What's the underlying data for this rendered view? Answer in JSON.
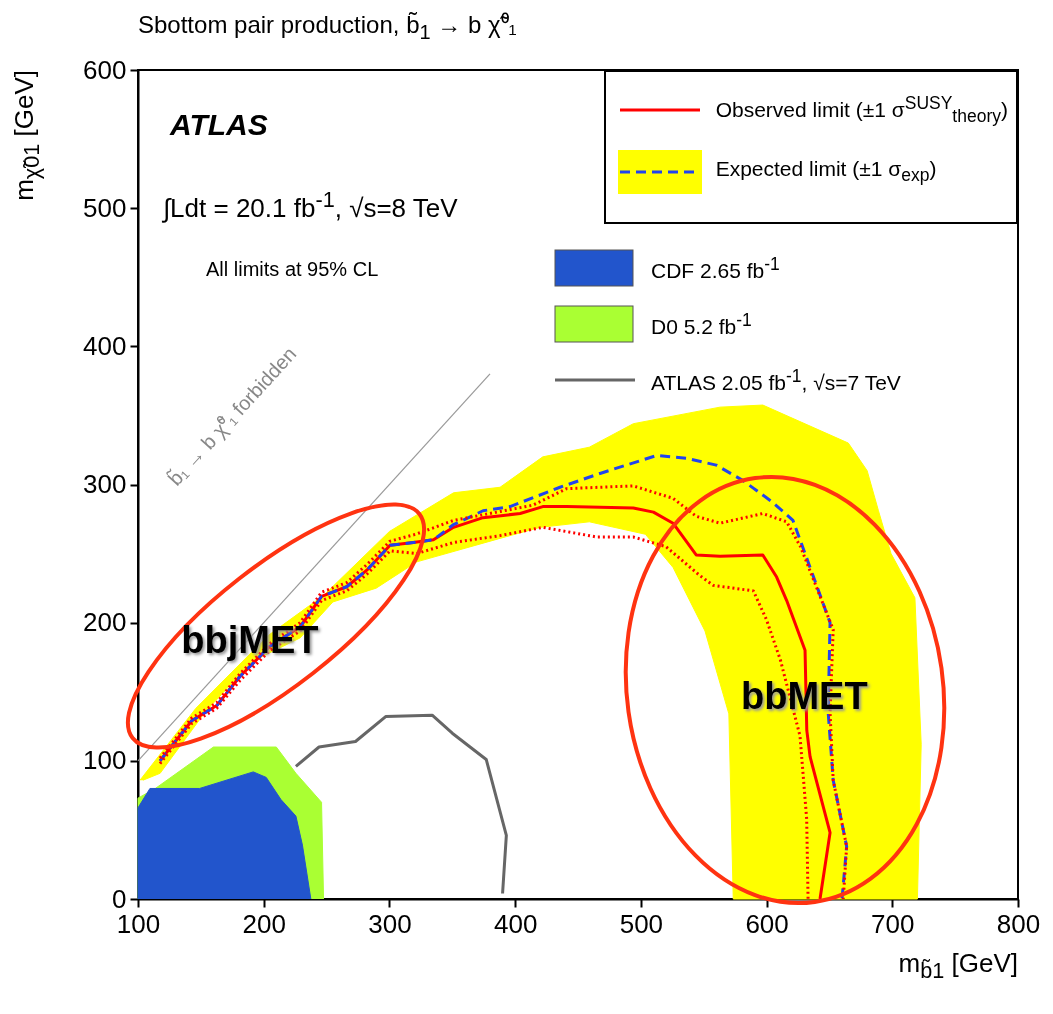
{
  "chart_data": {
    "type": "line",
    "title": "Sbottom pair production, b̃$_{1}$ → b χ̃⁰₁",
    "xlabel": "m$_{b̃1}$ [GeV]",
    "ylabel": "m$_{χ̃01}$ [GeV]",
    "xlim": [
      100,
      800
    ],
    "xticks": [
      100,
      200,
      300,
      400,
      500,
      600,
      700,
      800
    ],
    "ylim": [
      0,
      600
    ],
    "yticks": [
      0,
      100,
      200,
      300,
      400,
      500,
      600
    ],
    "legend": "top right",
    "annotations": [
      "ATLAS",
      "∫Ldt = 20.1 fb$^{-1}$,  √s=8 TeV",
      "All limits at 95% CL",
      "b̃₁ → b χ̃⁰₁ forbidden",
      {
        "text": "bbjMET",
        "x": 189,
        "y": 187
      },
      {
        "text": "bbMET",
        "x": 630,
        "y": 146
      }
    ],
    "series": [
      {
        "type": "area",
        "color": "#ffff00",
        "x": [
          101.6,
          146,
          204,
          248,
          300,
          351,
          388,
          422,
          459,
          494,
          563,
          597,
          618,
          665,
          680,
          689,
          699,
          718,
          723,
          720,
          573.5,
          570,
          551,
          525.6,
          503.6,
          459,
          420,
          388,
          321.7,
          289.5,
          255,
          229,
          191,
          154,
          117.6,
          104
        ],
        "values": [
          86,
          138,
          191,
          220,
          266,
          294,
          298,
          320,
          327,
          344,
          356,
          357.5,
          349,
          330,
          310,
          281,
          250,
          218,
          112,
          0,
          0,
          134,
          194,
          240,
          264,
          273,
          269,
          261,
          244,
          225,
          215,
          189,
          172,
          136,
          91,
          86
        ]
      },
      {
        "type": "line",
        "name": "Observed limit (±1 σ$^{SUSY}$$_{theory}$)",
        "color": "#ff0000",
        "line_style": "solid",
        "x": [
          117.5,
          142.7,
          162.6,
          181,
          205,
          229,
          246,
          266,
          282,
          300.5,
          319,
          335,
          351,
          374.5,
          404,
          422,
          441,
          494,
          510,
          525.6,
          544,
          563,
          597,
          608,
          616,
          630.6,
          632,
          634.6,
          650.5,
          642.5
        ],
        "values": [
          100,
          129,
          140,
          161,
          183,
          197,
          219,
          226,
          238,
          256,
          258,
          260,
          269,
          276,
          279,
          284,
          284,
          283,
          280,
          272,
          249,
          248,
          249,
          233,
          216,
          180,
          122,
          103,
          48,
          0
        ]
      },
      {
        "type": "line",
        "name": "Expected limit (±1 σ$_{exp}$)",
        "color": "#2244ee",
        "line_style": "dashed",
        "x": [
          117.5,
          142.7,
          162.6,
          181,
          205,
          229,
          246,
          266,
          282,
          300.5,
          319,
          335,
          351,
          374.5,
          396,
          435.7,
          467.5,
          512.6,
          536.5,
          560,
          581,
          605,
          621,
          634.6,
          650.5,
          649,
          653,
          663.7,
          660
        ],
        "values": [
          100,
          129,
          140,
          161,
          183,
          197,
          219,
          226,
          238,
          256,
          258,
          260,
          271,
          281,
          284,
          298,
          308,
          321,
          319,
          314,
          303,
          287,
          274,
          240,
          200,
          135,
          86,
          38,
          0
        ]
      },
      {
        "type": "area",
        "name": "CDF 2.65 fb$^{-1}$",
        "color": "#2255cc",
        "x": [
          100,
          100,
          109.5,
          149,
          191.7,
          202,
          213.7,
          225.6,
          230.8,
          237.5
        ],
        "values": [
          0,
          66,
          80,
          80,
          92,
          88,
          72,
          60,
          39,
          0
        ]
      },
      {
        "type": "area",
        "name": "D0 5.2 fb$^{-1}$",
        "color": "#aaff33",
        "x": [
          100,
          100,
          113.8,
          160,
          210,
          225.6,
          246,
          247.6
        ],
        "values": [
          0,
          73,
          80,
          110,
          110,
          91,
          70,
          0
        ]
      },
      {
        "type": "line",
        "name": "ATLAS 2.05 fb$^{-1}$, √s=7 TeV",
        "color": "#666666",
        "line_style": "solid",
        "x": [
          225.6,
          244,
          273,
          297,
          334,
          350,
          377,
          393,
          390
        ],
        "values": [
          96,
          110,
          114,
          132,
          133,
          120,
          101,
          46,
          4
        ]
      },
      {
        "type": "line",
        "color": "#999999",
        "line_style": "solid",
        "x": [
          100,
          380
        ],
        "values": [
          100,
          380
        ]
      },
      {
        "type": "line",
        "color": "#ff0000",
        "line_style": "dotted",
        "x": [
          117.5,
          142.7,
          162.6,
          181,
          205,
          229,
          246,
          266,
          282,
          300.5,
          321,
          351,
          414,
          441,
          494,
          525.6,
          544,
          563,
          597,
          616,
          627,
          653,
          650.5,
          653,
          663.7,
          661
        ],
        "values": [
          102,
          131,
          142,
          163,
          185,
          200,
          222,
          229,
          242,
          259,
          264,
          274,
          285,
          297,
          299,
          290,
          277,
          272,
          279,
          273,
          255,
          195,
          135,
          86,
          38,
          0
        ]
      },
      {
        "type": "line",
        "color": "#ff0000",
        "line_style": "dotted",
        "x": [
          117.5,
          142.7,
          162.6,
          181,
          205,
          229,
          246,
          266,
          282,
          300.5,
          321.7,
          351,
          388,
          422,
          465,
          494,
          520,
          547,
          557.6,
          589.5,
          600,
          611,
          626.6,
          631.9,
          633
        ],
        "values": [
          98,
          127,
          138,
          158,
          180,
          194,
          216,
          223,
          235,
          252,
          250,
          258,
          263,
          269,
          262,
          262,
          255,
          234,
          227,
          223,
          202,
          173,
          118,
          58,
          0
        ]
      }
    ]
  }
}
